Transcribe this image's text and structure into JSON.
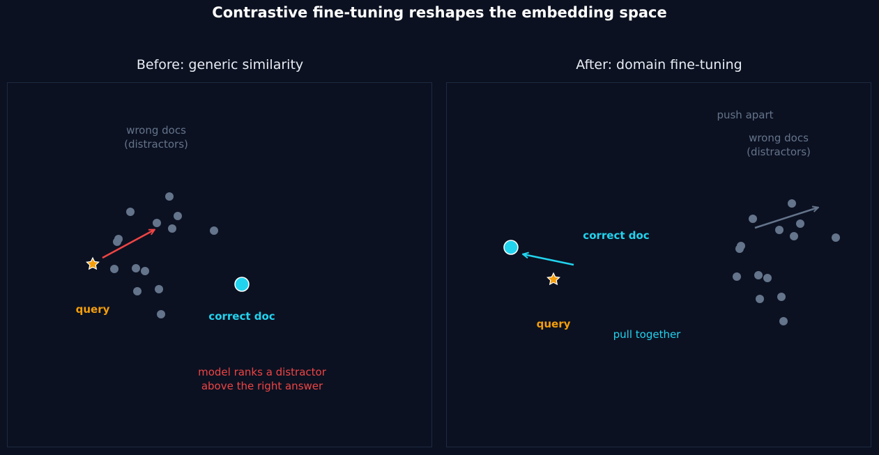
{
  "title": "Contrastive fine-tuning reshapes the embedding space",
  "colors": {
    "background": "#0b1120",
    "query": "#f59e0b",
    "correct_doc": "#22d3ee",
    "distractor": "#64748b",
    "error": "#ef4444"
  },
  "panels": [
    {
      "title": "Before: generic similarity",
      "distractor_label": [
        "wrong docs",
        "(distractors)"
      ],
      "query_label": "query",
      "correct_label": "correct doc",
      "note": [
        "model ranks a distractor",
        "above the right answer"
      ]
    },
    {
      "title": "After: domain fine-tuning",
      "distractor_label": [
        "wrong docs",
        "(distractors)"
      ],
      "query_label": "query",
      "correct_label": "correct doc",
      "push_label": "push apart",
      "pull_label": "pull together"
    }
  ]
}
